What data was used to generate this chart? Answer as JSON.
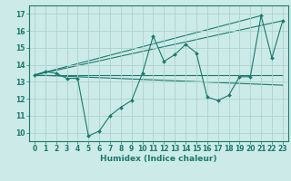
{
  "title": "",
  "xlabel": "Humidex (Indice chaleur)",
  "ylabel": "",
  "background_color": "#cceae7",
  "grid_color": "#aad4d0",
  "line_color": "#1a7a6e",
  "xlim": [
    -0.5,
    23.5
  ],
  "ylim": [
    9.5,
    17.5
  ],
  "yticks": [
    10,
    11,
    12,
    13,
    14,
    15,
    16,
    17
  ],
  "xticks": [
    0,
    1,
    2,
    3,
    4,
    5,
    6,
    7,
    8,
    9,
    10,
    11,
    12,
    13,
    14,
    15,
    16,
    17,
    18,
    19,
    20,
    21,
    22,
    23
  ],
  "main_series": {
    "x": [
      0,
      1,
      2,
      3,
      4,
      5,
      6,
      7,
      8,
      9,
      10,
      11,
      12,
      13,
      14,
      15,
      16,
      17,
      18,
      19,
      20,
      21,
      22,
      23
    ],
    "y": [
      13.4,
      13.6,
      13.5,
      13.2,
      13.2,
      9.8,
      10.1,
      11.0,
      11.5,
      11.9,
      13.5,
      15.7,
      14.2,
      14.6,
      15.2,
      14.7,
      12.1,
      11.9,
      12.2,
      13.3,
      13.3,
      16.9,
      14.4,
      16.6
    ]
  },
  "trend_lines": [
    {
      "x": [
        0,
        23
      ],
      "y": [
        13.4,
        13.4
      ]
    },
    {
      "x": [
        0,
        23
      ],
      "y": [
        13.4,
        16.6
      ]
    },
    {
      "x": [
        0,
        21
      ],
      "y": [
        13.4,
        16.9
      ]
    },
    {
      "x": [
        0,
        23
      ],
      "y": [
        13.4,
        12.8
      ]
    }
  ],
  "figsize": [
    3.2,
    2.0
  ],
  "dpi": 100
}
